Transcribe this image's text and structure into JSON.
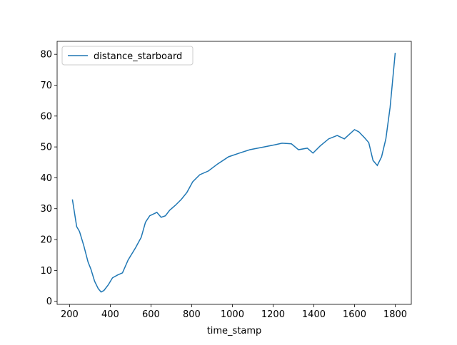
{
  "chart_data": {
    "type": "line",
    "xlabel": "time_stamp",
    "x": [
      214,
      235,
      249,
      270,
      291,
      305,
      323,
      341,
      355,
      369,
      390,
      411,
      436,
      460,
      488,
      524,
      552,
      573,
      594,
      629,
      650,
      671,
      692,
      720,
      749,
      777,
      805,
      840,
      882,
      928,
      981,
      1034,
      1086,
      1156,
      1209,
      1244,
      1290,
      1325,
      1368,
      1396,
      1431,
      1473,
      1515,
      1550,
      1600,
      1621,
      1649,
      1670,
      1691,
      1712,
      1733,
      1754,
      1775,
      1800
    ],
    "series": [
      {
        "name": "distance_starboard",
        "color": "#1f77b4",
        "values": [
          33,
          24.2,
          22.6,
          18,
          12.7,
          10.4,
          6.5,
          4.1,
          3.0,
          3.5,
          5.3,
          7.6,
          8.5,
          9.2,
          13.4,
          17.3,
          20.7,
          25.6,
          27.7,
          28.8,
          27.2,
          27.7,
          29.5,
          31.1,
          33,
          35.3,
          38.7,
          41,
          42.2,
          44.5,
          46.8,
          48,
          49.1,
          50,
          50.7,
          51.2,
          51,
          49.1,
          49.6,
          48,
          50.3,
          52.6,
          53.7,
          52.6,
          55.6,
          54.9,
          53,
          51.4,
          45.6,
          44,
          46.8,
          52.6,
          62.9,
          80.5
        ]
      }
    ],
    "xlim": [
      139,
      1879
    ],
    "ylim": [
      -1,
      84.2
    ],
    "xticks": [
      200,
      400,
      600,
      800,
      1000,
      1200,
      1400,
      1600,
      1800
    ],
    "yticks": [
      0,
      10,
      20,
      30,
      40,
      50,
      60,
      70,
      80
    ],
    "legend": "upper left"
  }
}
